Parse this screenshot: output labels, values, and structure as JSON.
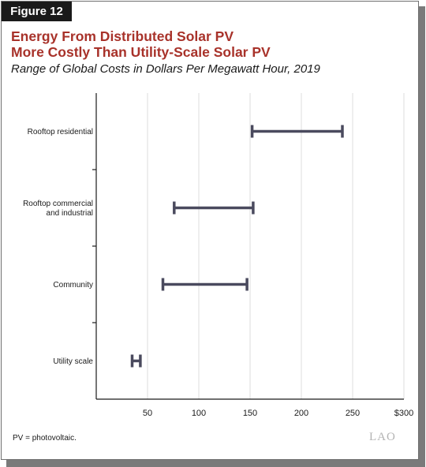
{
  "figure_label": "Figure 12",
  "title_line1": "Energy From Distributed Solar PV",
  "title_line2": "More Costly Than Utility-Scale Solar PV",
  "subtitle": "Range of Global Costs in Dollars Per Megawatt Hour, 2019",
  "footnote": "PV = photovoltaic.",
  "logo_text": "LAO",
  "colors": {
    "title": "#a8322a",
    "range_bar": "#4a4a5e",
    "grid": "#dcdcdc"
  },
  "chart_data": {
    "type": "range",
    "orientation": "horizontal",
    "categories": [
      {
        "label": [
          "Rooftop residential"
        ],
        "low": 152,
        "high": 240
      },
      {
        "label": [
          "Rooftop commercial",
          "and industrial"
        ],
        "low": 76,
        "high": 153
      },
      {
        "label": [
          "Community"
        ],
        "low": 65,
        "high": 147
      },
      {
        "label": [
          "Utility scale"
        ],
        "low": 35,
        "high": 43
      }
    ],
    "xlim": [
      0,
      300
    ],
    "xticks": [
      50,
      100,
      150,
      200,
      250,
      300
    ],
    "xtick_labels": [
      "50",
      "100",
      "150",
      "200",
      "250",
      "$300"
    ],
    "grid": "vertical"
  }
}
